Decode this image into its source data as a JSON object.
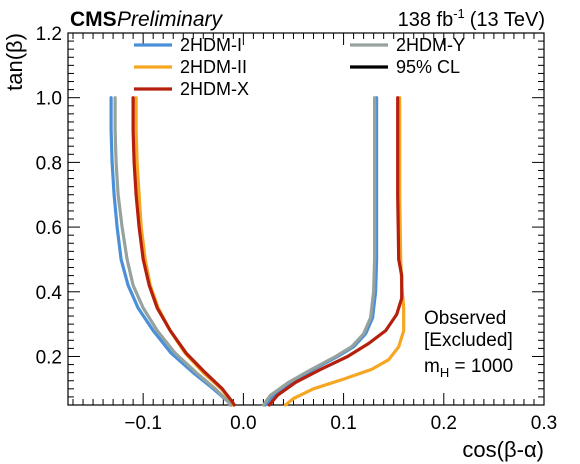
{
  "chart_data": {
    "type": "line",
    "header": {
      "experiment": "CMS",
      "status": "Preliminary",
      "lumi_value": "138 fb",
      "lumi_exponent": "-1",
      "energy": "(13 TeV)"
    },
    "xlabel": "cos(β-α)",
    "ylabel": "tan(β)",
    "xlim": [
      -0.175,
      0.3
    ],
    "ylim": [
      0.05,
      1.2
    ],
    "x_ticks": [
      -0.1,
      0.0,
      0.1,
      0.2,
      0.3
    ],
    "x_tick_labels": [
      "−0.1",
      "0.0",
      "0.1",
      "0.2",
      "0.3"
    ],
    "y_ticks": [
      0.2,
      0.4,
      0.6,
      0.8,
      1.0,
      1.2
    ],
    "y_tick_labels": [
      "0.2",
      "0.4",
      "0.6",
      "0.8",
      "1.0",
      "1.2"
    ],
    "grid": false,
    "legend_position": "top",
    "annotation": {
      "line1": "Observed",
      "line2": "[Excluded]",
      "line3_prefix": "m",
      "line3_sub": "H",
      "line3_suffix": " = 1000"
    },
    "legend": [
      {
        "label": "2HDM-I",
        "color": "#4a90d9",
        "column": 0
      },
      {
        "label": "2HDM-II",
        "color": "#f5a623",
        "column": 0
      },
      {
        "label": "2HDM-X",
        "color": "#b5200d",
        "column": 0
      },
      {
        "label": "2HDM-Y",
        "color": "#95a29e",
        "column": 1
      },
      {
        "label": "95% CL",
        "color": "#000000",
        "column": 1
      }
    ],
    "series": [
      {
        "name": "2HDM-I",
        "color": "#4a90d9",
        "left": [
          [
            -0.132,
            1.0
          ],
          [
            -0.132,
            0.9
          ],
          [
            -0.131,
            0.8
          ],
          [
            -0.129,
            0.7
          ],
          [
            -0.126,
            0.6
          ],
          [
            -0.122,
            0.5
          ],
          [
            -0.115,
            0.42
          ],
          [
            -0.105,
            0.35
          ],
          [
            -0.09,
            0.28
          ],
          [
            -0.072,
            0.21
          ],
          [
            -0.05,
            0.15
          ],
          [
            -0.03,
            0.1
          ],
          [
            -0.015,
            0.06
          ],
          [
            -0.012,
            0.05
          ]
        ],
        "right": [
          [
            0.022,
            0.05
          ],
          [
            0.03,
            0.08
          ],
          [
            0.048,
            0.12
          ],
          [
            0.07,
            0.16
          ],
          [
            0.094,
            0.2
          ],
          [
            0.11,
            0.23
          ],
          [
            0.122,
            0.27
          ],
          [
            0.129,
            0.32
          ],
          [
            0.132,
            0.4
          ],
          [
            0.133,
            0.5
          ],
          [
            0.133,
            0.7
          ],
          [
            0.133,
            0.9
          ],
          [
            0.133,
            1.0
          ]
        ]
      },
      {
        "name": "2HDM-II",
        "color": "#f5a623",
        "left": [
          [
            -0.107,
            1.0
          ],
          [
            -0.107,
            0.9
          ],
          [
            -0.106,
            0.8
          ],
          [
            -0.104,
            0.7
          ],
          [
            -0.102,
            0.6
          ],
          [
            -0.098,
            0.5
          ],
          [
            -0.093,
            0.42
          ],
          [
            -0.085,
            0.35
          ],
          [
            -0.073,
            0.28
          ],
          [
            -0.058,
            0.21
          ],
          [
            -0.04,
            0.15
          ],
          [
            -0.022,
            0.1
          ],
          [
            -0.012,
            0.06
          ],
          [
            -0.01,
            0.05
          ]
        ],
        "right": [
          [
            0.042,
            0.05
          ],
          [
            0.05,
            0.07
          ],
          [
            0.07,
            0.1
          ],
          [
            0.1,
            0.13
          ],
          [
            0.128,
            0.16
          ],
          [
            0.145,
            0.19
          ],
          [
            0.155,
            0.23
          ],
          [
            0.16,
            0.28
          ],
          [
            0.16,
            0.35
          ],
          [
            0.158,
            0.42
          ],
          [
            0.157,
            0.5
          ],
          [
            0.156,
            0.7
          ],
          [
            0.156,
            0.9
          ],
          [
            0.156,
            1.0
          ]
        ]
      },
      {
        "name": "2HDM-X",
        "color": "#b5200d",
        "left": [
          [
            -0.11,
            1.0
          ],
          [
            -0.11,
            0.9
          ],
          [
            -0.109,
            0.8
          ],
          [
            -0.107,
            0.7
          ],
          [
            -0.104,
            0.6
          ],
          [
            -0.1,
            0.5
          ],
          [
            -0.094,
            0.42
          ],
          [
            -0.086,
            0.35
          ],
          [
            -0.073,
            0.28
          ],
          [
            -0.057,
            0.21
          ],
          [
            -0.038,
            0.15
          ],
          [
            -0.021,
            0.1
          ],
          [
            -0.011,
            0.06
          ],
          [
            -0.009,
            0.05
          ]
        ],
        "right": [
          [
            0.026,
            0.05
          ],
          [
            0.034,
            0.08
          ],
          [
            0.052,
            0.12
          ],
          [
            0.077,
            0.16
          ],
          [
            0.104,
            0.2
          ],
          [
            0.125,
            0.24
          ],
          [
            0.142,
            0.28
          ],
          [
            0.153,
            0.33
          ],
          [
            0.158,
            0.38
          ],
          [
            0.158,
            0.45
          ],
          [
            0.155,
            0.5
          ],
          [
            0.154,
            0.7
          ],
          [
            0.154,
            0.9
          ],
          [
            0.154,
            1.0
          ]
        ]
      },
      {
        "name": "2HDM-Y",
        "color": "#95a29e",
        "left": [
          [
            -0.128,
            1.0
          ],
          [
            -0.128,
            0.9
          ],
          [
            -0.127,
            0.8
          ],
          [
            -0.125,
            0.7
          ],
          [
            -0.121,
            0.6
          ],
          [
            -0.116,
            0.5
          ],
          [
            -0.11,
            0.42
          ],
          [
            -0.1,
            0.35
          ],
          [
            -0.086,
            0.28
          ],
          [
            -0.068,
            0.21
          ],
          [
            -0.047,
            0.15
          ],
          [
            -0.028,
            0.1
          ],
          [
            -0.015,
            0.06
          ],
          [
            -0.013,
            0.05
          ]
        ],
        "right": [
          [
            0.02,
            0.05
          ],
          [
            0.027,
            0.08
          ],
          [
            0.045,
            0.12
          ],
          [
            0.068,
            0.16
          ],
          [
            0.092,
            0.2
          ],
          [
            0.108,
            0.23
          ],
          [
            0.12,
            0.27
          ],
          [
            0.127,
            0.32
          ],
          [
            0.13,
            0.4
          ],
          [
            0.131,
            0.5
          ],
          [
            0.131,
            0.7
          ],
          [
            0.131,
            0.9
          ],
          [
            0.131,
            1.0
          ]
        ]
      }
    ]
  }
}
